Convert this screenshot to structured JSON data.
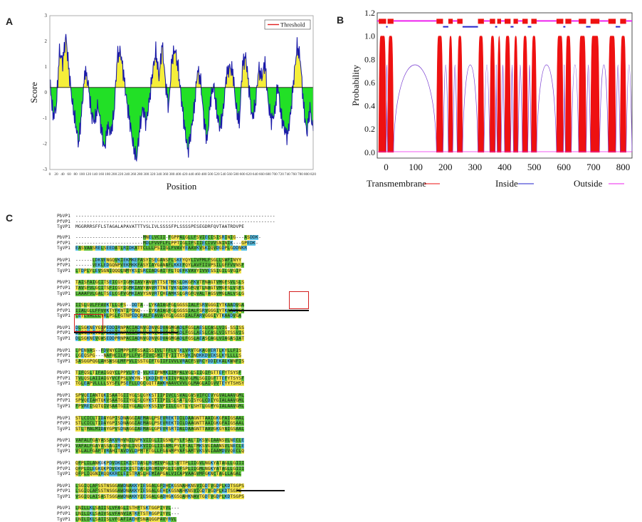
{
  "panels": {
    "a": "A",
    "b": "B",
    "c": "C"
  },
  "chart_data": [
    {
      "type": "area",
      "panel": "A",
      "xlabel": "Position",
      "ylabel": "Score",
      "xlim": [
        0,
        820
      ],
      "ylim": [
        -3,
        3
      ],
      "yticks": [
        -3,
        -2,
        -1,
        0,
        1,
        2,
        3
      ],
      "xticks": [
        0,
        20,
        40,
        60,
        80,
        100,
        120,
        140,
        160,
        180,
        200,
        220,
        240,
        260,
        280,
        300,
        320,
        340,
        360,
        380,
        400,
        420,
        440,
        460,
        480,
        500,
        520,
        540,
        560,
        580,
        600,
        620,
        640,
        660,
        680,
        700,
        720,
        740,
        760,
        780,
        800,
        820
      ],
      "threshold": 0.2,
      "legend": [
        "Threshold"
      ],
      "legend_position": "top-right",
      "colors": {
        "above": "#f5ee3a",
        "below": "#22e026",
        "line": "#1a1aa8",
        "threshold": "#e02020"
      },
      "series": [
        {
          "x": [
            0,
            10,
            20,
            30,
            40,
            50,
            60,
            70,
            80,
            90,
            100,
            110,
            120,
            130,
            140,
            150,
            160,
            170,
            180,
            190,
            200,
            210,
            220,
            230,
            240,
            250,
            260,
            270,
            280,
            290,
            300,
            310,
            320,
            330,
            340,
            350,
            360,
            370,
            380,
            390,
            400,
            410,
            420,
            430,
            440,
            450,
            460,
            470,
            480,
            490,
            500,
            510,
            520,
            530,
            540,
            550,
            560,
            570,
            580,
            590,
            600,
            610,
            620,
            630,
            640,
            650,
            660,
            670,
            680,
            690,
            700,
            710,
            720,
            730,
            740,
            750,
            760,
            770,
            780,
            790,
            800,
            810,
            820
          ],
          "values": [
            0.5,
            -0.9,
            -0.6,
            1.6,
            1.2,
            2.2,
            0.8,
            -0.4,
            -1.2,
            -2.0,
            -0.6,
            0.9,
            0.3,
            -0.9,
            -1.1,
            -0.5,
            -1.4,
            -2.2,
            -1.3,
            -1.6,
            -0.8,
            1.4,
            1.6,
            0.7,
            -0.4,
            -1.2,
            -2.1,
            -2.6,
            -1.4,
            -0.6,
            -1.2,
            -0.3,
            0.8,
            1.6,
            0.6,
            1.9,
            0.4,
            -0.6,
            1.3,
            1.7,
            0.9,
            -0.3,
            -1.4,
            -2.3,
            -1.5,
            -0.6,
            0.9,
            0.4,
            -1.1,
            -1.9,
            -0.3,
            0.3,
            -0.8,
            -1.4,
            -0.7,
            0.7,
            1.0,
            0.8,
            -0.6,
            -1.2,
            1.1,
            1.4,
            0.2,
            -1.0,
            -0.5,
            0.9,
            0.6,
            1.2,
            -0.4,
            -1.1,
            -0.8,
            0.3,
            -0.9,
            -1.4,
            -1.7,
            -0.8,
            0.6,
            1.8,
            1.3,
            -0.5,
            -1.6,
            -0.6,
            -1.5
          ]
        }
      ]
    },
    {
      "type": "area",
      "panel": "B",
      "ylabel": "Probability",
      "xlim": [
        -30,
        830
      ],
      "ylim": [
        -0.05,
        1.2
      ],
      "yticks": [
        0.0,
        0.2,
        0.4,
        0.6,
        0.8,
        1.0,
        1.2
      ],
      "xticks": [
        0,
        100,
        200,
        300,
        400,
        500,
        600,
        700,
        800
      ],
      "legend": [
        "Transmembrane",
        "Inside",
        "Outside"
      ],
      "legend_position": "bottom",
      "colors": {
        "transmembrane": "#ee1111",
        "inside": "#2222cc",
        "outside": "#ee22ee"
      },
      "tm_segments": [
        [
          -25,
          0
        ],
        [
          5,
          25
        ],
        [
          170,
          192
        ],
        [
          210,
          225
        ],
        [
          240,
          258
        ],
        [
          310,
          330
        ],
        [
          350,
          368
        ],
        [
          375,
          388
        ],
        [
          400,
          420
        ],
        [
          430,
          445
        ],
        [
          460,
          478
        ],
        [
          490,
          508
        ],
        [
          575,
          598
        ],
        [
          605,
          625
        ],
        [
          650,
          675
        ],
        [
          690,
          720
        ],
        [
          750,
          775
        ],
        [
          790,
          810
        ]
      ],
      "inside_level": 1.08,
      "outside_level": 1.13
    }
  ],
  "alignment": {
    "blocks": [
      {
        "rows": [
          {
            "name": "PbVP1",
            "seq": "-----------------------------------------------------------------------"
          },
          {
            "name": "PfVP1",
            "seq": "-----------------------------------------------------------------------"
          },
          {
            "name": "TgVP1",
            "seq": "MGGRRRSFFLSTAGALAPAVATTTVSLIVLSSSSFPLSSSSPESEGDRFQVTAATRDVPE"
          }
        ]
      },
      {
        "rows": [
          {
            "name": "PbVP1",
            "seq": "------------------------MNELVCII-FGPPALGLLFSVIECISISRINIG---ASDDK-"
          },
          {
            "name": "PfVP1",
            "seq": "------------------------MDLFVVFLFLPPTIGLIFSIIECIVVSNINIK---GPEDK-"
          },
          {
            "name": "TgVP1",
            "seq": "EASVAASRELSEEDATLRIDKATTCLLLPSIIGLFVAVYEAAVKVSKIQVDGDPLGDDNKR"
          }
        ]
      },
      {
        "rows": [
          {
            "name": "PbVP1",
            "seq": "------LDKVENGQVKIEKMKEFASYISEGANSFLSKEYQYLIVFMLFSGLLSWFINYY"
          },
          {
            "name": "PfVP1",
            "seq": "------VEKLEDGQNPVEKMKKFASYIAYGANAFLKKEFQYLAVFIIVPSILGFFVVNSF"
          },
          {
            "name": "TgVP1",
            "seq": "LTDPLYLEVSGNIQQQLNMYKSISRCIADGAITFLTQEFKVAVYIVVESSIGILGVGIP"
          }
        ]
      },
      {
        "rows": [
          {
            "name": "PbVP1",
            "seq": "TAISFAIGCITSEICGYIGMKIAVYANVRTTSETMKSLDKGFKVTFNAGTVMGFSVLSLS"
          },
          {
            "name": "PfVP1",
            "seq": "TAVSFVLGCITSFICGYIGMKIAVYANVRTTNETVKSLDKGFQVTLNAGTVMGFSLVSFS"
          },
          {
            "name": "TgVP1",
            "seq": "LAAAFVLGALTSELCGFVGMKIAVYSNVRTCHEAMKSLGRGFQVALTAGSVMGLALVSLG"
          }
        ]
      },
      {
        "rows": [
          {
            "name": "PbVP1",
            "seq": "IISLGVLFFAVKTLLQFS--DDTA--LYKAIAGFGLGGSSIALFSRVGGGIYTKAADVGA"
          },
          {
            "name": "PfVP1",
            "seq": "IIALGLLFFVVKTYFKNTIPDNQ---IYKAIAGFGLGGSSIALFSRVGGGIYTKAADVGA"
          },
          {
            "name": "TgVP1",
            "seq": "CETLVALLLYRLPSLFGTNPEDQRALFEAVAGYGLGGSSIALFARVGGGIYTKAADVGA"
          }
        ]
      },
      {
        "rows": [
          {
            "name": "PbVP1",
            "seq": "DLSGKNEYGIPEDDIRNPACIADNVGDNVGDVAGMGADLFGSLAESLCASLVIG-SSISS"
          },
          {
            "name": "PfVP1",
            "seq": "DLSGKNEYGIPEDDIRNPACIADNVGDNVGDVAGMGADLFGSLAESLCASLVIGTSSVIS"
          },
          {
            "name": "TgVP1",
            "seq": "DLSGKNEVGWSEDDPRNPACIADNVGDNVGDVAGMGADLFGSLAEASCAGLVIAGASIAT"
          }
        ]
      },
      {
        "rows": [
          {
            "name": "PbVP1",
            "seq": "LPENVAS--FDVNYCIMPPLFFSSAISSIVLTFFLVTKLVRVTGKAGVERTLKYLLFIS"
          },
          {
            "name": "PfVP1",
            "seq": "LGEQSPG---NAFHCILFPLLFVSFIVCSMITFYIITYSVKINDKKDVEKSLKYLLLLS"
          },
          {
            "name": "TgVP1",
            "seq": "SASGGPQGLAHSWSGLMFPVLISSTGIFTGIIFIVVLVRACFSVRCYDDIEKALKWNFIS"
          }
        ]
      },
      {
        "rows": [
          {
            "name": "PbVP1",
            "seq": "TIFQSLTIFAIGQYCLPPVLRYD-VLKEIPNMKIIMPALVGLSIIGIFGTTEFYTSYSF"
          },
          {
            "name": "PfVP1",
            "seq": "TVLQSLAIIAIGYVCFPSLVKYN-YLKDIHRYKIIVPALVGLMLSGIIGFTTEFYTSYSF"
          },
          {
            "name": "TgVP1",
            "seq": "TGLEAPVLLLLSYSFLPSEFLLDGCGQTTAWKHAAVCVVLGLMAGLAIGVVTEYYTSHSY"
          }
        ]
      },
      {
        "rows": [
          {
            "name": "PbVP1",
            "seq": "SPVQEIANTQKISAATGIIYGLSLGYKSTIIPIVCLSVALGVSVIFCEVYGVALAAVGML"
          },
          {
            "name": "PfVP1",
            "seq": "SPVQEIAHTQKVSAATGIIYGLSLGYKSTIIPILSLSATLGISYGLCDIYGIALAAVGML"
          },
          {
            "name": "TgVP1",
            "seq": "FPVREISQTQIVSAATGIIYGLALGYKSSIVPIILCGYTLYLSHTLGGMYGIALAAVGML"
          }
        ]
      },
      {
        "rows": [
          {
            "name": "PbVP1",
            "seq": "STLCICLTIDAYGPISDNAGGIAEMAGLPSEVREKTDILDAAGNTTAAIGKGFAIGSAAL"
          },
          {
            "name": "PfVP1",
            "seq": "STLCICLTIDAYGPISDNAGGIAEMAGLPSEVREKTDILDAAGNTTAAIGKGFAIGSAAL"
          },
          {
            "name": "TgVP1",
            "seq": "STLTMALMIDAYGPVSDNAGGIAEMAGLGPEVRSRTDALDAAGNTTAAVGKGYAIGSAAL"
          }
        ]
      },
      {
        "rows": [
          {
            "name": "PbVP1",
            "seq": "VAFALFGAYASSAKVRHVNILNPKVIIGLIIGSNLPYLFSALTIKSVGIAANSVLNECLE"
          },
          {
            "name": "PfVP1",
            "seq": "VAFALFGAYASSAGIRHVNLINSKVIIGLIIGAMLPYLFSALTMKSVGIAANSVLNECLE"
          },
          {
            "name": "TgVP1",
            "seq": "VSLALFGAFTVRAHITAVDVLDPMTFTGLLFGANMPYAFSAMTVKSVGIAAMDVVQECLQ"
          }
        ]
      },
      {
        "rows": [
          {
            "name": "PbVP1",
            "seq": "QFPLILANKOKPDVDKCIKISTDASLRQMIVPGLISVTTPLIIGVLNGKYATAGLLGIII"
          },
          {
            "name": "PfVP1",
            "seq": "QFPLILEGKQKPDVEKCIKISTDASLRQMIVPGLISVFSPLIIGMLNGKYATAGLLGIII"
          },
          {
            "name": "TgVP1",
            "seq": "QFPLIQGNIRQQKKRCLEISTRASLHEMIAPGALVICAPVAAGVMFGKNCTAGLLAGAL"
          }
        ]
      },
      {
        "rows": [
          {
            "name": "PbVP1",
            "seq": "LSGIQLAFSSTNSGGAWDNAKKYIESGALGFDHCKGSNAHKNSVIGDTVGDPLKDTSGPS"
          },
          {
            "name": "PfVP1",
            "seq": "LSGIQLAFSSTNSGGAWDNAKKYIESGALGEHCKGSNAHKNSVIGDTVGDPLKDTSGPS"
          },
          {
            "name": "TgVP1",
            "seq": "VSGIQLAISASTSGGAWDNAKKYIESGALGADHGKGSQAHKNAVTGDTVGDPLKDTSGPS"
          }
        ]
      },
      {
        "rows": [
          {
            "name": "PbVP1",
            "seq": "LNILLKLSAIISLVFAGLISTHFTSKTGGPIYVL---"
          },
          {
            "name": "PfVP1",
            "seq": "LNILIKLSAIVSLVFANVIATKFTSTRGGPIYVL---"
          },
          {
            "name": "TgVP1",
            "seq": "LNILIKLSAIISLVFGAFIAEHFSNAQGGPAVYRVL"
          }
        ]
      }
    ]
  }
}
